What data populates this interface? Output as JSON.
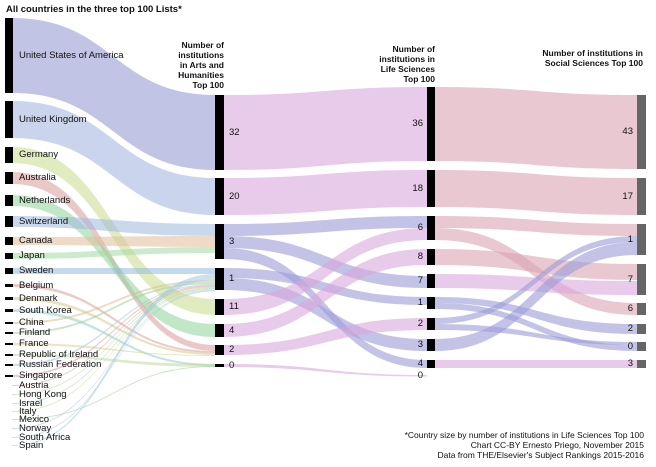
{
  "title": "All countries in the three top 100 Lists*",
  "columns": {
    "arts": "Number of institutions in Arts and Humanities Top 100",
    "life": "Number of institutions in Life Sciences Top 100",
    "social": "Number of institutions in Social Sciences Top 100"
  },
  "countries": [
    "United States of America",
    "United Kingdom",
    "Germany",
    "Australia",
    "Netherlands",
    "Switzerland",
    "Canada",
    "Japan",
    "Sweden",
    "Belgium",
    "Denmark",
    "South Korea",
    "China",
    "Finland",
    "France",
    "Republic of Ireland",
    "Russian Federation",
    "Singapore",
    "Austria",
    "Hong Kong",
    "Israel",
    "Italy",
    "Mexico",
    "Norway",
    "South Africa",
    "Spain"
  ],
  "arts_nodes": [
    "32",
    "20",
    "3",
    "1",
    "11",
    "4",
    "2",
    "0"
  ],
  "life_nodes": [
    "36",
    "18",
    "6",
    "8",
    "7",
    "1",
    "2",
    "3",
    "4",
    "0"
  ],
  "social_nodes": [
    "43",
    "17",
    "1",
    "7",
    "6",
    "2",
    "0",
    "3"
  ],
  "footer": [
    "*Country size by number of institutions in Life Sciences Top 100",
    "Chart CC-BY Ernesto Priego, November 2015",
    "Data from THE/Elsevier's Subject Rankings 2015-2016"
  ],
  "colors": {
    "node": "#000000",
    "social_node": "#666666",
    "arts_to_life_pink": "#d9a6dc",
    "purple": "#9b9bd8",
    "life_to_social": "#dba3b3"
  }
}
